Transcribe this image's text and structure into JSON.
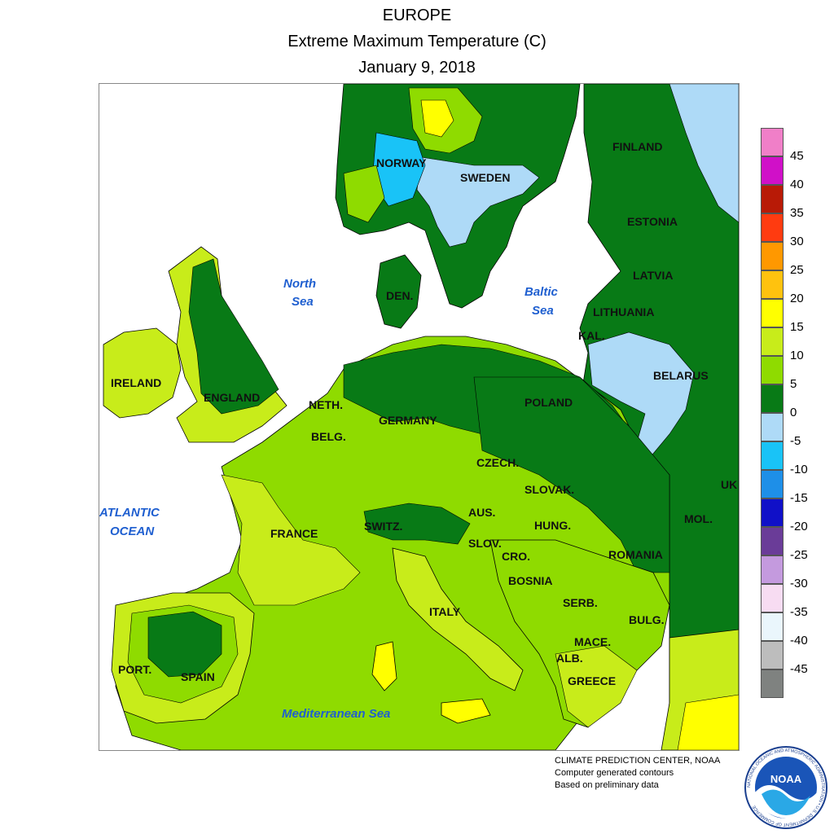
{
  "header": {
    "region": "EUROPE",
    "title": "Extreme Maximum Temperature (C)",
    "date": "January 9, 2018"
  },
  "legend": {
    "ticks": [
      "45",
      "40",
      "35",
      "30",
      "25",
      "20",
      "15",
      "10",
      "5",
      "0",
      "-5",
      "-10",
      "-15",
      "-20",
      "-25",
      "-30",
      "-35",
      "-40",
      "-45"
    ],
    "colors": [
      "#f07fc8",
      "#d010c8",
      "#b81a06",
      "#ff3b10",
      "#ff9800",
      "#ffc20e",
      "#ffff00",
      "#c8ec1a",
      "#8fdb00",
      "#087a16",
      "#aedaf7",
      "#19c3f7",
      "#1e8fe8",
      "#1010c8",
      "#6a3c98",
      "#c49ade",
      "#f7dcf2",
      "#eaf6fc",
      "#bdbdbd",
      "#7f8280"
    ]
  },
  "map": {
    "country_labels": [
      "FINLAND",
      "NORWAY",
      "SWEDEN",
      "ESTONIA",
      "LATVIA",
      "LITHUANIA",
      "KAL.",
      "BELARUS",
      "DEN.",
      "IRELAND",
      "ENGLAND",
      "NETH.",
      "BELG.",
      "GERMANY",
      "POLAND",
      "CZECH.",
      "SLOVAK.",
      "UK",
      "AUS.",
      "SWITZ.",
      "FRANCE",
      "HUNG.",
      "MOL.",
      "SLOV.",
      "CRO.",
      "ROMANIA",
      "BOSNIA",
      "SERB.",
      "BULG.",
      "ITALY",
      "MACE.",
      "ALB.",
      "GREECE",
      "PORT.",
      "SPAIN"
    ],
    "sea_labels": [
      "North",
      "Sea",
      "Baltic",
      "Sea",
      "ATLANTIC",
      "OCEAN",
      "Mediterranean Sea"
    ]
  },
  "credits": {
    "line1": "CLIMATE PREDICTION CENTER, NOAA",
    "line2": "Computer generated contours",
    "line3": "Based on preliminary data"
  },
  "logo": {
    "text": "NOAA",
    "ring_text": "NATIONAL OCEANIC AND ATMOSPHERIC ADMINISTRATION • U.S. DEPARTMENT OF COMMERCE"
  }
}
